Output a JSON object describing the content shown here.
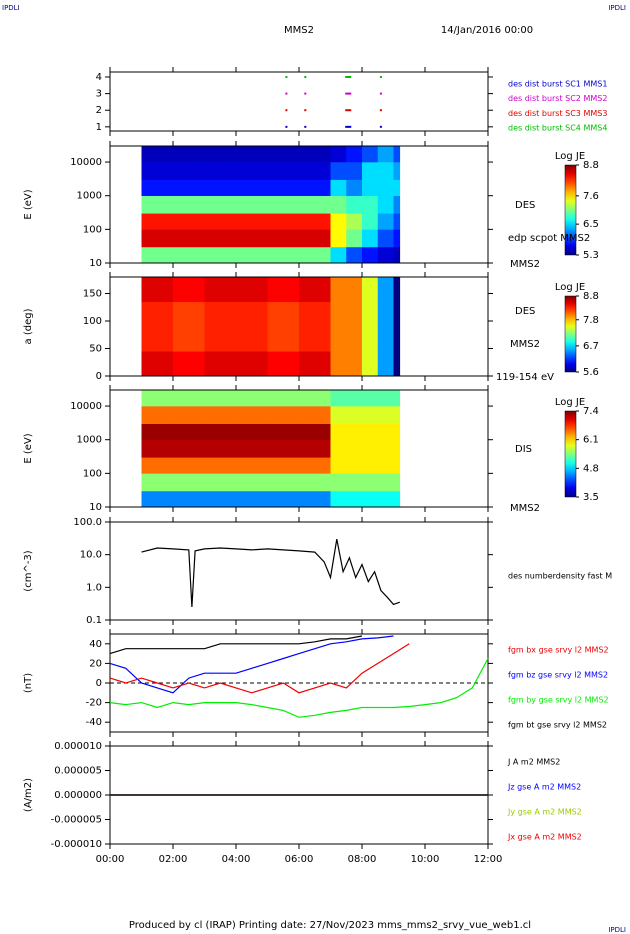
{
  "header": {
    "left": "IPDLI",
    "right": "IPDLI",
    "mission": "MMS2",
    "date": "14/Jan/2016 00:00"
  },
  "footer": {
    "text": "Produced by cl (IRAP)   Printing date: 27/Nov/2023   mms_mms2_srvy_vue_web1.cl",
    "right": "IPDLI"
  },
  "chart_data": [
    {
      "type": "scatter",
      "xlim": [
        0,
        12
      ],
      "xticks": [
        0,
        2,
        4,
        6,
        8,
        10,
        12
      ],
      "ylim": [
        0.75,
        4.3
      ],
      "yticks": [
        1,
        2,
        3,
        4
      ],
      "series": [
        {
          "name": "des dist burst SC1 MMS1",
          "color": "#0000cc",
          "x": [
            5.6,
            6.2,
            7.5,
            8.6
          ],
          "values": [
            1,
            1,
            1,
            1
          ]
        },
        {
          "name": "des dist burst SC2 MMS2",
          "color": "#cc00cc",
          "x": [
            5.6,
            6.2,
            7.5,
            8.6
          ],
          "values": [
            3,
            3,
            3,
            3
          ]
        },
        {
          "name": "des dist burst SC3 MMS3",
          "color": "#dd0000",
          "x": [
            5.6,
            6.2,
            7.5,
            8.6
          ],
          "values": [
            2,
            2,
            2,
            2
          ]
        },
        {
          "name": "des dist burst SC4 MMS4",
          "color": "#00bb00",
          "x": [
            5.6,
            6.2,
            7.5,
            8.6
          ],
          "values": [
            4,
            4,
            4,
            4
          ]
        }
      ]
    },
    {
      "type": "heatmap",
      "ylabel": "E (eV)",
      "log_y": true,
      "xlim": [
        0,
        12
      ],
      "xticks": [
        0,
        2,
        4,
        6,
        8,
        10,
        12
      ],
      "ylim": [
        10,
        30000
      ],
      "yticks": [
        10,
        100,
        1000,
        10000
      ],
      "x_edges": [
        1,
        2,
        3,
        4,
        5,
        6,
        7,
        7.5,
        8,
        8.5,
        9,
        9.2
      ],
      "y_edges": [
        10,
        30,
        100,
        300,
        1000,
        3000,
        10000,
        30000
      ],
      "z": [
        [
          7.0,
          8.5,
          8.3,
          7.0,
          5.8,
          5.6,
          5.5
        ],
        [
          7.0,
          8.5,
          8.3,
          7.0,
          5.8,
          5.6,
          5.5
        ],
        [
          7.0,
          8.5,
          8.3,
          7.0,
          5.8,
          5.6,
          5.5
        ],
        [
          7.0,
          8.5,
          8.3,
          7.0,
          5.8,
          5.6,
          5.5
        ],
        [
          7.0,
          8.5,
          8.3,
          7.0,
          5.8,
          5.6,
          5.5
        ],
        [
          7.0,
          8.5,
          8.3,
          7.0,
          5.8,
          5.6,
          5.5
        ],
        [
          6.5,
          7.5,
          7.5,
          7.0,
          6.5,
          6.0,
          5.6
        ],
        [
          6.0,
          7.0,
          7.2,
          6.8,
          6.2,
          6.0,
          5.8
        ],
        [
          5.8,
          6.5,
          6.8,
          6.8,
          6.5,
          6.5,
          6.0
        ],
        [
          5.6,
          6.0,
          6.3,
          6.5,
          6.5,
          6.5,
          6.3
        ],
        [
          5.5,
          5.8,
          6.0,
          6.2,
          6.5,
          6.3,
          6.0
        ]
      ],
      "colorbar": {
        "title": "Log JE",
        "zlim": [
          5.3,
          8.8
        ],
        "ticks": [
          8.8,
          7.6,
          6.5,
          5.3
        ]
      },
      "annotations": [
        "DES",
        "edp scpot MMS2",
        "MMS2"
      ]
    },
    {
      "type": "heatmap",
      "ylabel": "a (deg)",
      "log_y": false,
      "xlim": [
        0,
        12
      ],
      "xticks": [
        0,
        2,
        4,
        6,
        8,
        10,
        12
      ],
      "ylim": [
        0,
        180
      ],
      "yticks": [
        0,
        50,
        100,
        150
      ],
      "x_edges": [
        1,
        2,
        3,
        4,
        5,
        6,
        7,
        7.5,
        8,
        8.5,
        9,
        9.2
      ],
      "y_edges": [
        0,
        45,
        90,
        135,
        180
      ],
      "z": [
        [
          8.5,
          8.3,
          8.3,
          8.5
        ],
        [
          8.4,
          8.2,
          8.2,
          8.4
        ],
        [
          8.5,
          8.3,
          8.3,
          8.5
        ],
        [
          8.5,
          8.3,
          8.3,
          8.5
        ],
        [
          8.4,
          8.2,
          8.2,
          8.4
        ],
        [
          8.5,
          8.3,
          8.3,
          8.5
        ],
        [
          8.0,
          8.0,
          8.0,
          8.0
        ],
        [
          8.0,
          8.0,
          8.0,
          8.0
        ],
        [
          7.5,
          7.5,
          7.5,
          7.5
        ],
        [
          6.5,
          6.5,
          6.5,
          6.5
        ],
        [
          5.6,
          5.6,
          5.6,
          5.6
        ]
      ],
      "colorbar": {
        "title": "Log JE",
        "zlim": [
          5.6,
          8.8
        ],
        "ticks": [
          8.8,
          7.8,
          6.7,
          5.6
        ]
      },
      "annotations": [
        "DES",
        "MMS2",
        "119-154 eV"
      ]
    },
    {
      "type": "heatmap",
      "ylabel": "E (eV)",
      "log_y": true,
      "xlim": [
        0,
        12
      ],
      "xticks": [
        0,
        2,
        4,
        6,
        8,
        10,
        12
      ],
      "ylim": [
        10,
        30000
      ],
      "yticks": [
        10,
        100,
        1000,
        10000
      ],
      "x_edges": [
        1,
        2,
        3,
        4,
        5,
        6,
        7,
        7.5,
        8,
        8.5,
        9,
        9.2
      ],
      "y_edges": [
        10,
        30,
        100,
        300,
        1000,
        3000,
        10000,
        30000
      ],
      "z": [
        [
          4.5,
          5.5,
          6.5,
          7.2,
          7.3,
          6.5,
          5.5
        ],
        [
          4.5,
          5.5,
          6.5,
          7.2,
          7.3,
          6.5,
          5.5
        ],
        [
          4.5,
          5.5,
          6.5,
          7.2,
          7.3,
          6.5,
          5.5
        ],
        [
          4.5,
          5.5,
          6.5,
          7.2,
          7.3,
          6.5,
          5.5
        ],
        [
          4.5,
          5.5,
          6.5,
          7.2,
          7.3,
          6.5,
          5.5
        ],
        [
          4.5,
          5.5,
          6.5,
          7.2,
          7.3,
          6.5,
          5.5
        ],
        [
          5.0,
          5.5,
          6.0,
          6.0,
          6.0,
          5.8,
          5.3
        ],
        [
          5.0,
          5.5,
          6.0,
          6.0,
          6.0,
          5.8,
          5.3
        ],
        [
          5.0,
          5.5,
          6.0,
          6.0,
          6.0,
          5.8,
          5.3
        ],
        [
          5.0,
          5.5,
          6.0,
          6.0,
          6.0,
          5.8,
          5.3
        ],
        [
          5.0,
          5.5,
          6.0,
          6.0,
          6.0,
          5.8,
          5.3
        ]
      ],
      "colorbar": {
        "title": "Log JE",
        "zlim": [
          3.5,
          7.4
        ],
        "ticks": [
          7.4,
          6.1,
          4.8,
          3.5
        ]
      },
      "annotations": [
        "DIS",
        "MMS2"
      ]
    },
    {
      "type": "line",
      "ylabel": "(cm^-3)",
      "log_y": true,
      "xlim": [
        0,
        12
      ],
      "xticks": [
        0,
        2,
        4,
        6,
        8,
        10,
        12
      ],
      "ylim": [
        0.1,
        100
      ],
      "yticks": [
        {
          "value": 100,
          "label": "100.0"
        },
        {
          "value": 10,
          "label": "10.0"
        },
        {
          "value": 1,
          "label": "1.0"
        },
        {
          "value": 0.1,
          "label": "0.1"
        }
      ],
      "x": [
        1.0,
        1.5,
        2.0,
        2.5,
        2.6,
        2.7,
        3.0,
        3.5,
        4.0,
        4.5,
        5.0,
        5.5,
        6.0,
        6.5,
        6.8,
        7.0,
        7.2,
        7.4,
        7.6,
        7.8,
        8.0,
        8.2,
        8.4,
        8.6,
        8.8,
        9.0,
        9.2
      ],
      "series": [
        {
          "name": "des numberdensity fast M",
          "color": "#000000",
          "values": [
            12,
            16,
            15,
            14,
            0.25,
            13,
            15,
            16,
            15,
            14,
            15,
            14,
            13,
            12,
            6,
            2,
            30,
            3,
            8,
            2,
            5,
            1.5,
            3,
            0.8,
            0.5,
            0.3,
            0.35
          ]
        }
      ]
    },
    {
      "type": "line",
      "ylabel": "(nT)",
      "log_y": false,
      "zero_line": true,
      "xlim": [
        0,
        12
      ],
      "xticks": [
        0,
        2,
        4,
        6,
        8,
        10,
        12
      ],
      "ylim": [
        -50,
        50
      ],
      "yticks": [
        40,
        20,
        0,
        -20,
        -40
      ],
      "x": [
        0,
        0.5,
        1,
        1.5,
        2,
        2.5,
        3,
        3.5,
        4,
        4.5,
        5,
        5.5,
        6,
        6.5,
        7,
        7.5,
        8,
        8.5,
        9,
        9.5,
        10,
        10.5,
        11,
        11.5,
        12
      ],
      "series": [
        {
          "name": "fgm bt gse srvy l2 MMS2",
          "color": "#000000",
          "values": [
            30,
            35,
            35,
            35,
            35,
            35,
            35,
            40,
            40,
            40,
            40,
            40,
            40,
            42,
            45,
            45,
            48,
            null,
            null,
            null,
            null,
            null,
            null,
            null,
            null
          ]
        },
        {
          "name": "fgm by gse srvy l2 MMS2",
          "color": "#00ee00",
          "values": [
            -20,
            -22,
            -20,
            -25,
            -20,
            -22,
            -20,
            -20,
            -20,
            -22,
            -25,
            -28,
            -35,
            -33,
            -30,
            -28,
            -25,
            -25,
            -25,
            -24,
            -22,
            -20,
            -15,
            -5,
            25
          ]
        },
        {
          "name": "fgm bz gse srvy l2 MMS2",
          "color": "#0000ff",
          "values": [
            20,
            15,
            0,
            -5,
            -10,
            5,
            10,
            10,
            10,
            15,
            20,
            25,
            30,
            35,
            40,
            42,
            45,
            46,
            48,
            null,
            null,
            null,
            null,
            null,
            null
          ]
        },
        {
          "name": "fgm bx gse srvy l2 MMS2",
          "color": "#ee0000",
          "values": [
            5,
            0,
            5,
            0,
            -5,
            0,
            -5,
            0,
            -5,
            -10,
            -5,
            0,
            -10,
            -5,
            0,
            -5,
            10,
            20,
            30,
            40,
            null,
            null,
            null,
            null,
            null
          ]
        }
      ]
    },
    {
      "type": "line",
      "ylabel": "(A/m2)",
      "log_y": false,
      "xlim": [
        0,
        12
      ],
      "xticks": [
        {
          "value": 0,
          "label": "00:00"
        },
        {
          "value": 2,
          "label": "02:00"
        },
        {
          "value": 4,
          "label": "04:00"
        },
        {
          "value": 6,
          "label": "06:00"
        },
        {
          "value": 8,
          "label": "08:00"
        },
        {
          "value": 10,
          "label": "10:00"
        },
        {
          "value": 12,
          "label": "12:00"
        }
      ],
      "ylim": [
        -1e-05,
        1e-05
      ],
      "yticks": [
        {
          "value": 1e-05,
          "label": "0.000010"
        },
        {
          "value": 5e-06,
          "label": "0.000005"
        },
        {
          "value": 0,
          "label": "0.000000"
        },
        {
          "value": -5e-06,
          "label": "-0.000005"
        },
        {
          "value": -1e-05,
          "label": "-0.000010"
        }
      ],
      "x": [
        0,
        3,
        6,
        9,
        12
      ],
      "series": [
        {
          "name": "Jx gse A m2 MMS2",
          "color": "#ee0000",
          "values": [
            0,
            0,
            0,
            0,
            0
          ]
        },
        {
          "name": "Jy gse A m2 MMS2",
          "color": "#99cc00",
          "values": [
            0,
            0,
            0,
            0,
            0
          ]
        },
        {
          "name": "Jz gse A m2 MMS2",
          "color": "#0000ff",
          "values": [
            0,
            0,
            0,
            0,
            0
          ]
        },
        {
          "name": "J A m2 MMS2",
          "color": "#000000",
          "values": [
            0,
            0,
            0,
            0,
            0
          ]
        }
      ]
    }
  ]
}
